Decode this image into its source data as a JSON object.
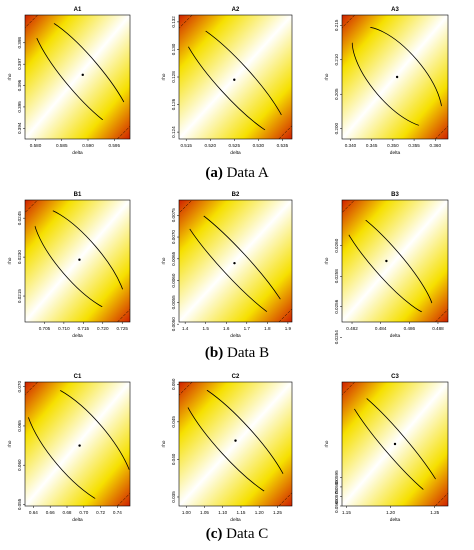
{
  "colors": {
    "low": "#ffffff",
    "mid": "#f6e000",
    "high": "#d02000",
    "contour": "#000000"
  },
  "captions": [
    {
      "label": "(a)",
      "text": "Data A"
    },
    {
      "label": "(b)",
      "text": "Data B"
    },
    {
      "label": "(c)",
      "text": "Data C"
    }
  ],
  "chart_data": [
    {
      "type": "heatmap",
      "title": "A1",
      "xlabel": "delta",
      "ylabel": "rho",
      "xlim": [
        0.578,
        0.598
      ],
      "ylim": [
        0.3935,
        0.3993
      ],
      "x_ticks": [
        "0.580",
        "0.585",
        "0.590",
        "0.595"
      ],
      "y_ticks": [
        "0.394",
        "0.395",
        "0.396",
        "0.397",
        "0.398"
      ],
      "estimate": [
        0.589,
        0.3965
      ],
      "contours": "confidence ellipse"
    },
    {
      "type": "heatmap",
      "title": "A2",
      "xlabel": "delta",
      "ylabel": "rho",
      "xlim": [
        0.5135,
        0.537
      ],
      "ylim": [
        0.1235,
        0.1325
      ],
      "x_ticks": [
        "0.515",
        "0.520",
        "0.525",
        "0.530",
        "0.535"
      ],
      "y_ticks": [
        "0.124",
        "0.126",
        "0.128",
        "0.130",
        "0.132"
      ],
      "estimate": [
        0.525,
        0.1278
      ],
      "contours": "confidence ellipse"
    },
    {
      "type": "heatmap",
      "title": "A3",
      "xlabel": "delta",
      "ylabel": "rho",
      "xlim": [
        0.338,
        0.363
      ],
      "ylim": [
        0.1985,
        0.2165
      ],
      "x_ticks": [
        "0.340",
        "0.345",
        "0.350",
        "0.355",
        "0.360"
      ],
      "y_ticks": [
        "0.200",
        "0.205",
        "0.210",
        "0.215"
      ],
      "estimate": [
        0.351,
        0.2075
      ],
      "contours": "confidence ellipse"
    },
    {
      "type": "heatmap",
      "title": "B1",
      "xlabel": "delta",
      "ylabel": "rho",
      "xlim": [
        0.7,
        0.727
      ],
      "ylim": [
        0.0205,
        0.0252
      ],
      "x_ticks": [
        "0.705",
        "0.710",
        "0.715",
        "0.720",
        "0.725"
      ],
      "y_ticks": [
        "0.0215",
        "0.0230",
        "0.0245"
      ],
      "estimate": [
        0.714,
        0.0229
      ],
      "contours": "confidence ellipse"
    },
    {
      "type": "heatmap",
      "title": "B2",
      "xlabel": "delta",
      "ylabel": "rho",
      "xlim": [
        1.37,
        1.92
      ],
      "ylim": [
        0.00505,
        0.00785
      ],
      "x_ticks": [
        "1.4",
        "1.5",
        "1.6",
        "1.7",
        "1.8",
        "1.9"
      ],
      "y_ticks": [
        "0.0050",
        "0.0055",
        "0.0060",
        "0.0065",
        "0.0070",
        "0.0075"
      ],
      "estimate": [
        1.64,
        0.0064
      ],
      "contours": "confidence ellipse"
    },
    {
      "type": "heatmap",
      "title": "B3",
      "xlabel": "delta",
      "ylabel": "rho",
      "xlim": [
        0.4813,
        0.4887
      ],
      "ylim": [
        0.0255,
        0.0263
      ],
      "x_ticks": [
        "0.482",
        "0.484",
        "0.486",
        "0.488"
      ],
      "y_ticks": [
        "0.0254",
        "0.0256",
        "0.0258",
        "0.0260"
      ],
      "estimate": [
        0.4844,
        0.0259
      ],
      "contours": "confidence ellipse"
    },
    {
      "type": "heatmap",
      "title": "C1",
      "xlabel": "delta",
      "ylabel": "rho",
      "xlim": [
        0.63,
        0.755
      ],
      "ylim": [
        0.0548,
        0.0706
      ],
      "x_ticks": [
        "0.64",
        "0.66",
        "0.68",
        "0.70",
        "0.72",
        "0.74"
      ],
      "y_ticks": [
        "0.055",
        "0.060",
        "0.065",
        "0.070"
      ],
      "estimate": [
        0.695,
        0.0625
      ],
      "contours": "confidence ellipse"
    },
    {
      "type": "heatmap",
      "title": "C2",
      "xlabel": "delta",
      "ylabel": "rho",
      "xlim": [
        0.98,
        1.29
      ],
      "ylim": [
        0.0338,
        0.0503
      ],
      "x_ticks": [
        "1.00",
        "1.05",
        "1.10",
        "1.15",
        "1.20",
        "1.25"
      ],
      "y_ticks": [
        "0.035",
        "0.040",
        "0.045",
        "0.050"
      ],
      "estimate": [
        1.135,
        0.0425
      ],
      "contours": "confidence ellipse"
    },
    {
      "type": "heatmap",
      "title": "C3",
      "xlabel": "delta",
      "ylabel": "rho",
      "xlim": [
        1.145,
        1.265
      ],
      "ylim": [
        0.0565,
        0.0695
      ],
      "x_ticks": [
        "1.15",
        "1.20",
        "1.25"
      ],
      "y_ticks": [
        "0.0565",
        "0.0575",
        "0.0585",
        "0.0595"
      ],
      "estimate": [
        1.205,
        0.063
      ],
      "contours": "confidence ellipse"
    }
  ]
}
